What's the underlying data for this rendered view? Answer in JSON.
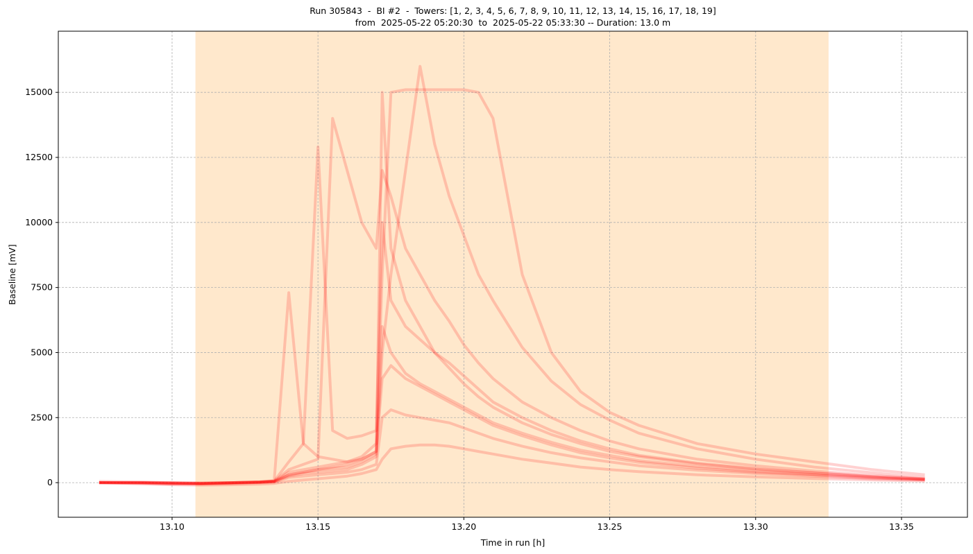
{
  "chart_data": {
    "type": "line",
    "title": "Run 305843  -  BI #2  -  Towers: [1, 2, 3, 4, 5, 6, 7, 8, 9, 10, 11, 12, 13, 14, 15, 16, 17, 18, 19]",
    "subtitle": "from  2025-05-22 05:20:30  to  2025-05-22 05:33:30 -- Duration: 13.0 m",
    "x_label": "Time in run [h]",
    "y_label": "Baseline [mV]",
    "xlim": [
      13.061,
      13.3726
    ],
    "ylim": [
      -1330,
      17350
    ],
    "xticks": [
      {
        "value": 13.1,
        "label": "13.10"
      },
      13.15,
      {
        "value": 13.2,
        "label": "13.20"
      },
      13.25,
      {
        "value": 13.3,
        "label": "13.30"
      },
      13.35
    ],
    "yticks": [
      0,
      2500,
      5000,
      7500,
      10000,
      12500,
      15000
    ],
    "grid": true,
    "color": "#ff0000",
    "line_alpha": 0.18,
    "highlight": [
      13.108,
      13.325
    ],
    "highlight_color": "#ffe8cc",
    "x": [
      13.075,
      13.09,
      13.1,
      13.11,
      13.12,
      13.13,
      13.135,
      13.14,
      13.145,
      13.15,
      13.155,
      13.16,
      13.165,
      13.17,
      13.172,
      13.175,
      13.18,
      13.185,
      13.19,
      13.195,
      13.2,
      13.205,
      13.21,
      13.22,
      13.23,
      13.24,
      13.25,
      13.26,
      13.28,
      13.3,
      13.32,
      13.34,
      13.358
    ],
    "series": [
      {
        "values": [
          0,
          -50,
          -80,
          -100,
          -80,
          -60,
          -30,
          50,
          100,
          150,
          200,
          250,
          350,
          500,
          900,
          1300,
          1400,
          1450,
          1450,
          1400,
          1300,
          1200,
          1100,
          900,
          750,
          600,
          500,
          420,
          300,
          220,
          160,
          100,
          60
        ]
      },
      {
        "values": [
          0,
          -20,
          -50,
          -50,
          -30,
          0,
          20,
          200,
          250,
          300,
          350,
          400,
          500,
          700,
          2500,
          2800,
          2600,
          2500,
          2400,
          2300,
          2100,
          1900,
          1700,
          1400,
          1150,
          950,
          800,
          650,
          480,
          350,
          250,
          150,
          100
        ]
      },
      {
        "values": [
          0,
          10,
          0,
          -20,
          0,
          20,
          50,
          300,
          400,
          500,
          600,
          700,
          900,
          1200,
          6000,
          5000,
          4200,
          3800,
          3500,
          3200,
          2900,
          2600,
          2300,
          1900,
          1550,
          1250,
          1050,
          850,
          620,
          450,
          320,
          200,
          120
        ]
      },
      {
        "values": [
          0,
          0,
          -30,
          -40,
          -20,
          10,
          40,
          250,
          350,
          400,
          450,
          500,
          700,
          1000,
          15000,
          9000,
          7000,
          6000,
          5000,
          4400,
          3800,
          3300,
          2900,
          2300,
          1850,
          1500,
          1200,
          1000,
          720,
          520,
          370,
          230,
          140
        ]
      },
      {
        "values": [
          50,
          20,
          0,
          -20,
          0,
          30,
          50,
          400,
          500,
          600,
          700,
          800,
          1000,
          1500,
          8000,
          15000,
          15100,
          15100,
          15100,
          15100,
          15100,
          15000,
          14000,
          8000,
          5000,
          3500,
          2700,
          2200,
          1500,
          1100,
          800,
          500,
          300
        ]
      },
      {
        "values": [
          0,
          0,
          -20,
          -30,
          0,
          20,
          60,
          500,
          700,
          900,
          14000,
          12000,
          10000,
          9000,
          12000,
          11000,
          9000,
          8000,
          7000,
          6200,
          5300,
          4600,
          4000,
          3100,
          2500,
          2000,
          1600,
          1300,
          900,
          650,
          450,
          280,
          150
        ]
      },
      {
        "values": [
          0,
          -20,
          -40,
          -50,
          -20,
          10,
          40,
          300,
          400,
          500,
          550,
          600,
          800,
          1100,
          5000,
          8000,
          12000,
          16000,
          13000,
          11000,
          9500,
          8000,
          7000,
          5200,
          3900,
          3000,
          2400,
          1900,
          1300,
          900,
          600,
          380,
          200
        ]
      },
      {
        "values": [
          0,
          0,
          -20,
          -30,
          0,
          30,
          80,
          7300,
          1500,
          1000,
          900,
          800,
          900,
          1200,
          4000,
          4500,
          4000,
          3700,
          3400,
          3100,
          2800,
          2500,
          2200,
          1800,
          1450,
          1150,
          950,
          780,
          560,
          400,
          290,
          180,
          110
        ]
      },
      {
        "values": [
          0,
          0,
          -10,
          -20,
          0,
          30,
          60,
          800,
          1500,
          12900,
          2000,
          1700,
          1800,
          2000,
          10000,
          7000,
          6000,
          5500,
          5000,
          4600,
          4100,
          3600,
          3100,
          2500,
          2000,
          1600,
          1300,
          1050,
          750,
          540,
          380,
          240,
          130
        ]
      }
    ]
  }
}
